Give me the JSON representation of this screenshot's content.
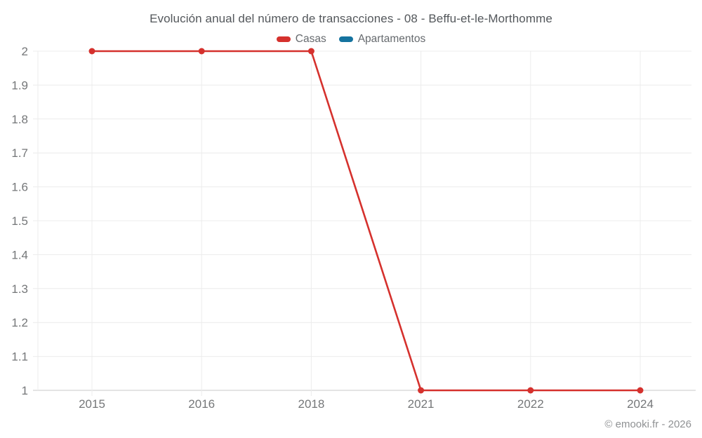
{
  "chart_data": {
    "type": "line",
    "title": "Evolución anual del número de transacciones - 08 - Beffu-et-le-Morthomme",
    "categories": [
      "2015",
      "2016",
      "2018",
      "2021",
      "2022",
      "2024"
    ],
    "series": [
      {
        "name": "Casas",
        "color": "#d5312d",
        "values": [
          2,
          2,
          2,
          1,
          1,
          1
        ]
      },
      {
        "name": "Apartamentos",
        "color": "#15739f",
        "values": []
      }
    ],
    "ylim": [
      1,
      2
    ],
    "yticks": [
      "2",
      "1.9",
      "1.8",
      "1.7",
      "1.6",
      "1.5",
      "1.4",
      "1.3",
      "1.2",
      "1.1",
      "1"
    ],
    "grid": true,
    "legend_position": "top",
    "marker": "circle"
  },
  "footer": {
    "copyright": "© emooki.fr - 2026"
  },
  "colors": {
    "casas": "#d5312d",
    "apartamentos": "#15739f",
    "gridline": "#ececec",
    "axis_line": "#c8c8c8",
    "tick_text": "#757779",
    "title_text": "#53575b",
    "legend_text": "#666a6e",
    "footer_text": "#8f9193",
    "background": "#ffffff"
  }
}
